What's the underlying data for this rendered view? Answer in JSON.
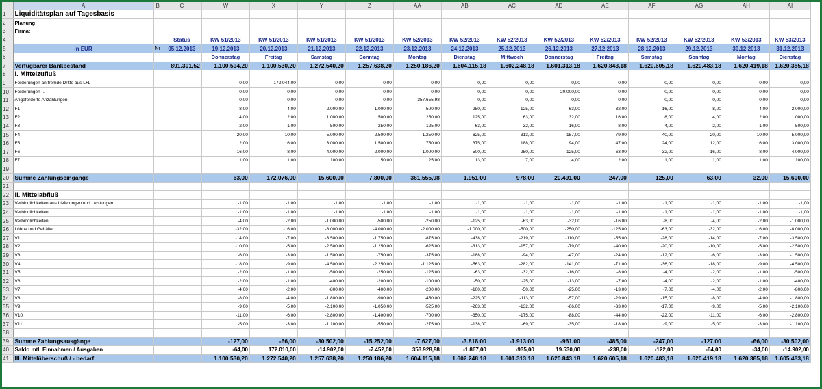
{
  "columns": [
    "A",
    "B",
    "C",
    "W",
    "X",
    "Y",
    "Z",
    "AA",
    "AB",
    "AC",
    "AD",
    "AE",
    "AF",
    "AG",
    "AH",
    "AI"
  ],
  "title": "Liquiditätsplan auf Tagesbasis",
  "planung_label": "Planung",
  "firma_label": "Firma:",
  "status_label": "Status",
  "status_date": "05.12.2013",
  "in_eur_label": "in EUR",
  "nr_label": "Nr",
  "kw": [
    "KW 51/2013",
    "KW 51/2013",
    "KW 51/2013",
    "KW 51/2013",
    "KW 52/2013",
    "KW 52/2013",
    "KW 52/2013",
    "KW 52/2013",
    "KW 52/2013",
    "KW 52/2013",
    "KW 52/2013",
    "KW 53/2013",
    "KW 53/2013"
  ],
  "dates": [
    "19.12.2013",
    "20.12.2013",
    "21.12.2013",
    "22.12.2013",
    "23.12.2013",
    "24.12.2013",
    "25.12.2013",
    "26.12.2013",
    "27.12.2013",
    "28.12.2013",
    "29.12.2013",
    "30.12.2013",
    "31.12.2013"
  ],
  "days": [
    "Donnerstag",
    "Freitag",
    "Samstag",
    "Sonntag",
    "Montag",
    "Dienstag",
    "Mittwoch",
    "Donnerstag",
    "Freitag",
    "Samstag",
    "Sonntag",
    "Montag",
    "Dienstag"
  ],
  "bank": {
    "label": "Verfügbarer Bankbestand",
    "c": "891.301,52",
    "values": [
      "1.100.594,20",
      "1.100.530,20",
      "1.272.540,20",
      "1.257.638,20",
      "1.250.186,20",
      "1.604.115,18",
      "1.602.248,18",
      "1.601.313,18",
      "1.620.843,18",
      "1.620.605,18",
      "1.620.483,18",
      "1.620.419,18",
      "1.620.385,18"
    ]
  },
  "section1": "I. Mittelzufluß",
  "inflow_rows": [
    {
      "row": "9",
      "label": "Forderungen an fremde Dritte aus L+L",
      "values": [
        "0,00",
        "172.044,00",
        "0,00",
        "0,00",
        "0,00",
        "0,00",
        "0,00",
        "0,00",
        "0,00",
        "0,00",
        "0,00",
        "0,00",
        "0,00"
      ]
    },
    {
      "row": "10",
      "label": "Forderungen ...",
      "values": [
        "0,00",
        "0,00",
        "0,00",
        "0,00",
        "0,00",
        "0,00",
        "0,00",
        "20.000,00",
        "0,00",
        "0,00",
        "0,00",
        "0,00",
        "0,00"
      ]
    },
    {
      "row": "11",
      "label": "Angeforderte Anzahlungen",
      "values": [
        "0,00",
        "0,00",
        "0,00",
        "0,00",
        "357.655,98",
        "0,00",
        "0,00",
        "0,00",
        "0,00",
        "0,00",
        "0,00",
        "0,00",
        "0,00"
      ]
    },
    {
      "row": "12",
      "label": "F1",
      "values": [
        "8,00",
        "4,00",
        "2.000,00",
        "1.000,00",
        "500,00",
        "250,00",
        "125,00",
        "63,00",
        "32,00",
        "16,00",
        "8,00",
        "4,00",
        "2.000,00"
      ]
    },
    {
      "row": "13",
      "label": "F2",
      "values": [
        "4,00",
        "2,00",
        "1.000,00",
        "500,00",
        "250,00",
        "125,00",
        "63,00",
        "32,00",
        "16,00",
        "8,00",
        "4,00",
        "2,00",
        "1.000,00"
      ]
    },
    {
      "row": "14",
      "label": "F3",
      "values": [
        "2,00",
        "1,00",
        "500,00",
        "250,00",
        "125,00",
        "63,00",
        "32,00",
        "16,00",
        "8,00",
        "4,00",
        "2,00",
        "1,00",
        "500,00"
      ]
    },
    {
      "row": "15",
      "label": "F4",
      "values": [
        "20,00",
        "10,00",
        "5.000,00",
        "2.500,00",
        "1.250,00",
        "625,00",
        "313,00",
        "157,00",
        "79,00",
        "40,00",
        "20,00",
        "10,00",
        "5.000,00"
      ]
    },
    {
      "row": "16",
      "label": "F5",
      "values": [
        "12,00",
        "6,00",
        "3.000,00",
        "1.500,00",
        "750,00",
        "375,00",
        "188,00",
        "94,00",
        "47,00",
        "24,00",
        "12,00",
        "6,00",
        "3.000,00"
      ]
    },
    {
      "row": "17",
      "label": "F6",
      "values": [
        "16,00",
        "8,00",
        "4.000,00",
        "2.000,00",
        "1.000,00",
        "500,00",
        "250,00",
        "125,00",
        "63,00",
        "32,00",
        "16,00",
        "8,00",
        "4.000,00"
      ]
    },
    {
      "row": "18",
      "label": "F7",
      "values": [
        "1,00",
        "1,00",
        "100,00",
        "50,00",
        "25,00",
        "13,00",
        "7,00",
        "4,00",
        "2,00",
        "1,00",
        "1,00",
        "1,00",
        "100,00"
      ]
    }
  ],
  "sum_in": {
    "label": "Summe Zahlungseingänge",
    "values": [
      "63,00",
      "172.076,00",
      "15.600,00",
      "7.800,00",
      "361.555,98",
      "1.951,00",
      "978,00",
      "20.491,00",
      "247,00",
      "125,00",
      "63,00",
      "32,00",
      "15.600,00"
    ]
  },
  "section2": "II. Mittelabfluß",
  "outflow_rows": [
    {
      "row": "23",
      "label": "Verbindlichkeiten aus Lieferungen und Leistungen",
      "values": [
        "-1,00",
        "-1,00",
        "-1,00",
        "-1,00",
        "-1,00",
        "-1,00",
        "-1,00",
        "-1,00",
        "-1,00",
        "-1,00",
        "-1,00",
        "-1,00",
        "-1,00"
      ]
    },
    {
      "row": "24",
      "label": "Verbindlichkeiten ...",
      "values": [
        "-1,00",
        "-1,00",
        "-1,00",
        "-1,00",
        "-1,00",
        "-1,00",
        "-1,00",
        "-1,00",
        "-1,00",
        "-1,00",
        "-1,00",
        "-1,00",
        "-1,00"
      ]
    },
    {
      "row": "25",
      "label": "Verbindlichkeiten ...",
      "values": [
        "-4,00",
        "-2,00",
        "-1.000,00",
        "-500,00",
        "-250,00",
        "-125,00",
        "-63,00",
        "-32,00",
        "-16,00",
        "-8,00",
        "-4,00",
        "-2,00",
        "-1.000,00"
      ]
    },
    {
      "row": "26",
      "label": "Löhne und Gehälter",
      "values": [
        "-32,00",
        "-16,00",
        "-8.000,00",
        "-4.000,00",
        "-2.000,00",
        "-1.000,00",
        "-500,00",
        "-250,00",
        "-125,00",
        "-63,00",
        "-32,00",
        "-16,00",
        "-8.000,00"
      ]
    },
    {
      "row": "27",
      "label": "V1",
      "values": [
        "-14,00",
        "-7,00",
        "-3.500,00",
        "-1.750,00",
        "-875,00",
        "-438,00",
        "-219,00",
        "-110,00",
        "-55,00",
        "-28,00",
        "-14,00",
        "-7,00",
        "-3.500,00"
      ]
    },
    {
      "row": "28",
      "label": "V2",
      "values": [
        "-10,00",
        "-5,00",
        "-2.500,00",
        "-1.250,00",
        "-625,00",
        "-313,00",
        "-157,00",
        "-79,00",
        "-40,00",
        "-20,00",
        "-10,00",
        "-5,00",
        "-2.500,00"
      ]
    },
    {
      "row": "29",
      "label": "V3",
      "values": [
        "-6,00",
        "-3,00",
        "-1.500,00",
        "-750,00",
        "-375,00",
        "-188,00",
        "-94,00",
        "-47,00",
        "-24,00",
        "-12,00",
        "-6,00",
        "-3,00",
        "-1.500,00"
      ]
    },
    {
      "row": "30",
      "label": "V4",
      "values": [
        "-18,00",
        "-9,00",
        "-4.500,00",
        "-2.250,00",
        "-1.125,00",
        "-563,00",
        "-282,00",
        "-141,00",
        "-71,00",
        "-36,00",
        "-18,00",
        "-9,00",
        "-4.500,00"
      ]
    },
    {
      "row": "31",
      "label": "V5",
      "values": [
        "-2,00",
        "-1,00",
        "-500,00",
        "-250,00",
        "-125,00",
        "-63,00",
        "-32,00",
        "-16,00",
        "-8,00",
        "-4,00",
        "-2,00",
        "-1,00",
        "-500,00"
      ]
    },
    {
      "row": "32",
      "label": "V6",
      "values": [
        "-2,00",
        "-1,00",
        "-400,00",
        "-200,00",
        "-100,00",
        "-50,00",
        "-25,00",
        "-13,00",
        "-7,00",
        "-4,00",
        "-2,00",
        "-1,00",
        "-400,00"
      ]
    },
    {
      "row": "33",
      "label": "V7",
      "values": [
        "-4,00",
        "-2,00",
        "-800,00",
        "-400,00",
        "-200,00",
        "-100,00",
        "-50,00",
        "-25,00",
        "-13,00",
        "-7,00",
        "-4,00",
        "-2,00",
        "-800,00"
      ]
    },
    {
      "row": "34",
      "label": "V8",
      "values": [
        "-8,00",
        "-4,00",
        "-1.800,00",
        "-900,00",
        "-450,00",
        "-225,00",
        "-113,00",
        "-57,00",
        "-29,00",
        "-15,00",
        "-8,00",
        "-4,00",
        "-1.800,00"
      ]
    },
    {
      "row": "35",
      "label": "V9",
      "values": [
        "-9,00",
        "-5,00",
        "-2.100,00",
        "-1.050,00",
        "-525,00",
        "-263,00",
        "-132,00",
        "-66,00",
        "-33,00",
        "-17,00",
        "-9,00",
        "-5,00",
        "-2.100,00"
      ]
    },
    {
      "row": "36",
      "label": "V10",
      "values": [
        "-11,00",
        "-6,00",
        "-2.800,00",
        "-1.400,00",
        "-700,00",
        "-350,00",
        "-175,00",
        "-88,00",
        "-44,00",
        "-22,00",
        "-11,00",
        "-6,00",
        "-2.800,00"
      ]
    },
    {
      "row": "37",
      "label": "V11",
      "values": [
        "-5,00",
        "-3,00",
        "-1.100,00",
        "-550,00",
        "-275,00",
        "-138,00",
        "-69,00",
        "-35,00",
        "-18,00",
        "-9,00",
        "-5,00",
        "-3,00",
        "-1.100,00"
      ]
    }
  ],
  "sum_out": {
    "label": "Summe Zahlungsausgänge",
    "values": [
      "-127,00",
      "-66,00",
      "-30.502,00",
      "-15.252,00",
      "-7.627,00",
      "-3.818,00",
      "-1.913,00",
      "-961,00",
      "-485,00",
      "-247,00",
      "-127,00",
      "-66,00",
      "-30.502,00"
    ]
  },
  "saldo": {
    "label": "Saldo mtl. Einnahmen / Ausgaben",
    "values": [
      "-64,00",
      "172.010,00",
      "-14.902,00",
      "-7.452,00",
      "353.928,98",
      "-1.867,00",
      "-935,00",
      "19.530,00",
      "-238,00",
      "-122,00",
      "-64,00",
      "-34,00",
      "-14.902,00"
    ]
  },
  "section3": {
    "label": "III. Mittelüberschuß / - bedarf",
    "values": [
      "1.100.530,20",
      "1.272.540,20",
      "1.257.638,20",
      "1.250.186,20",
      "1.604.115,18",
      "1.602.248,18",
      "1.601.313,18",
      "1.620.843,18",
      "1.620.605,18",
      "1.620.483,18",
      "1.620.419,18",
      "1.620.385,18",
      "1.605.483,18"
    ]
  }
}
